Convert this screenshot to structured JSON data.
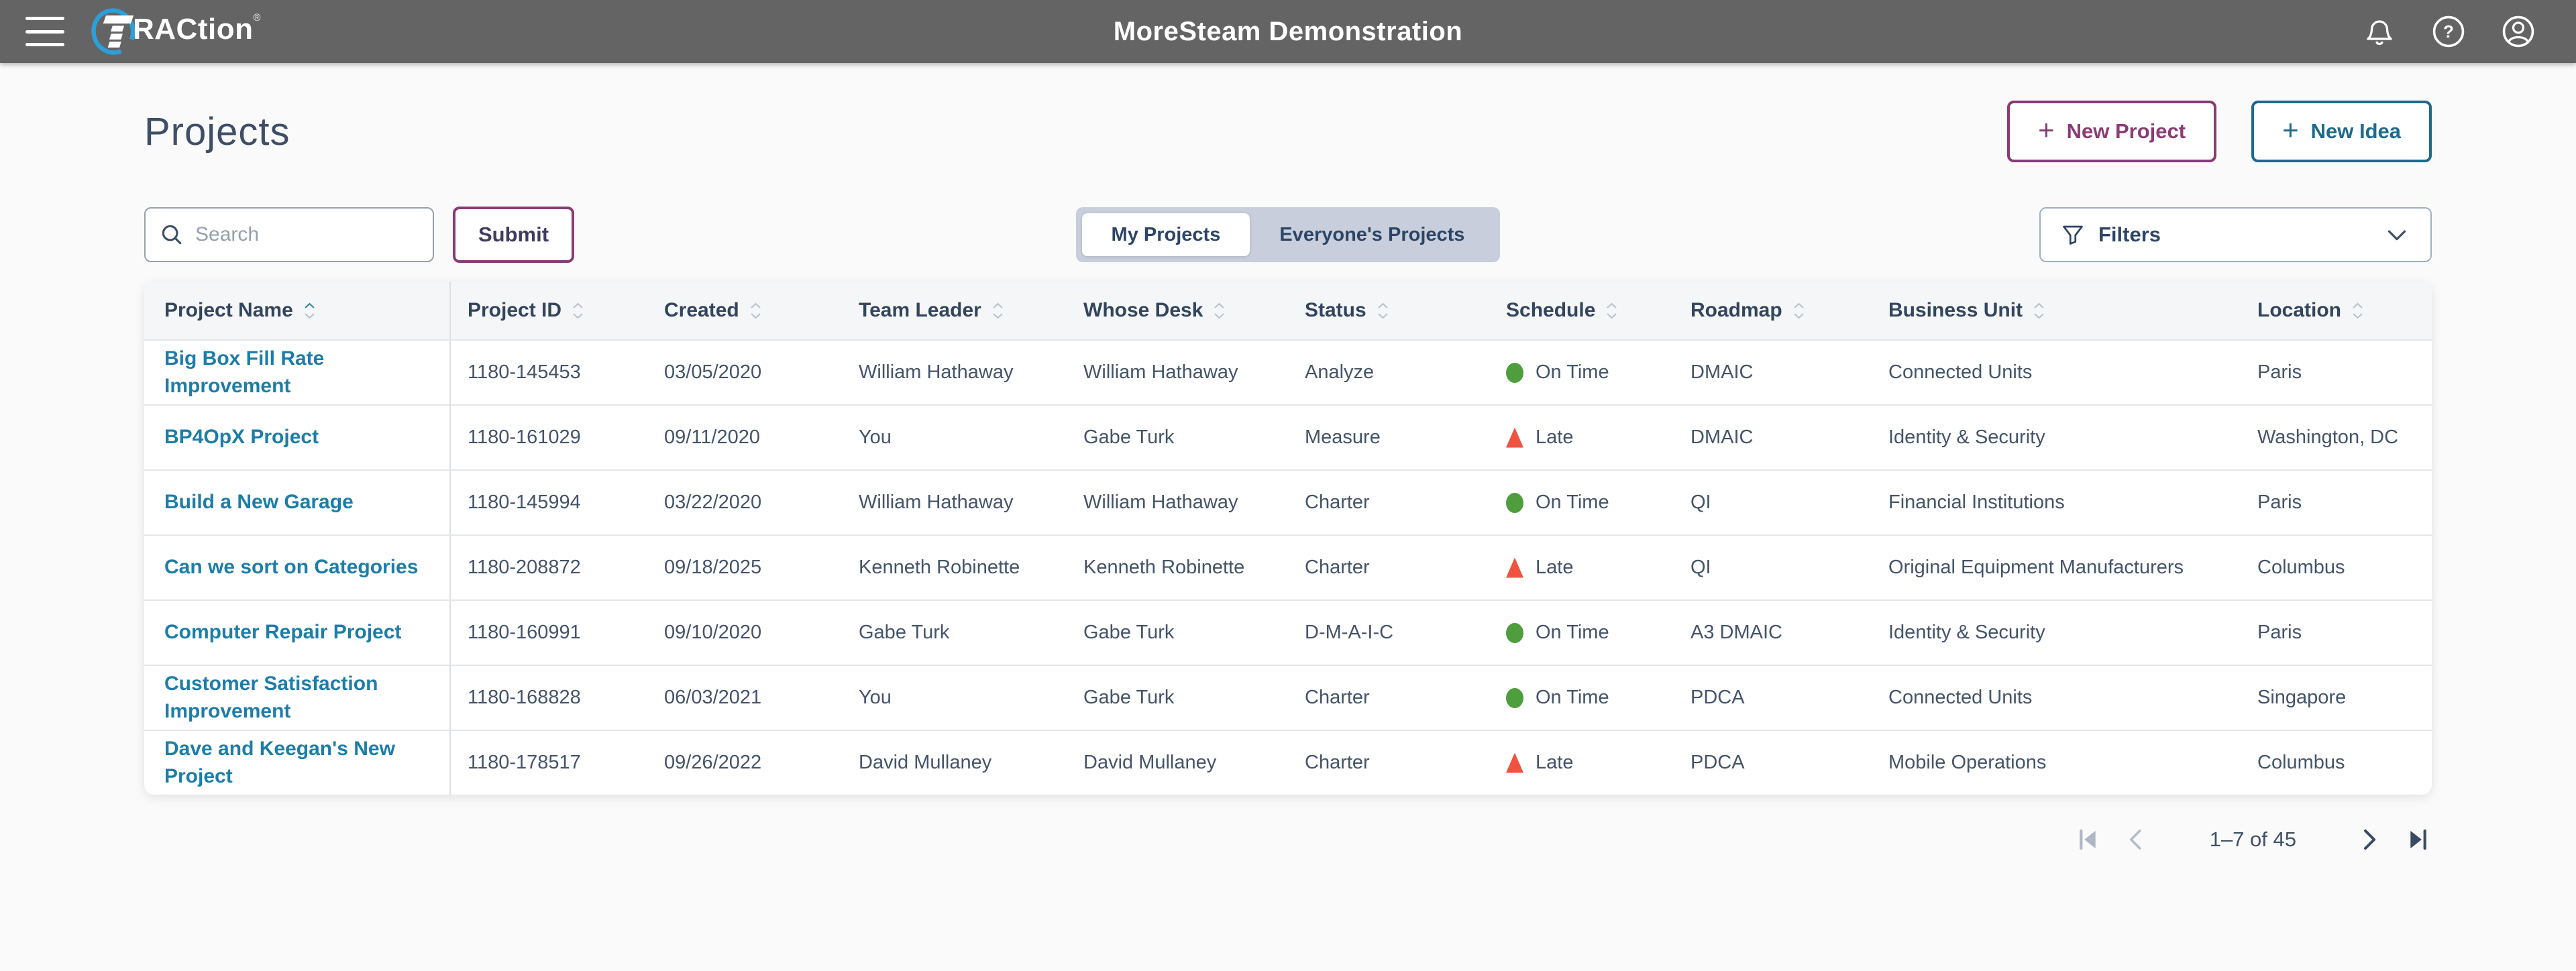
{
  "topbar": {
    "brand_text": "RACtion",
    "brand_reg": "®",
    "title": "MoreSteam Demonstration"
  },
  "page": {
    "title": "Projects",
    "plus_glyph": "+",
    "new_project_label": "New Project",
    "new_idea_label": "New Idea",
    "search_placeholder": "Search",
    "submit_label": "Submit",
    "filters_label": "Filters",
    "tabs": [
      {
        "label": "My Projects",
        "active": true
      },
      {
        "label": "Everyone's Projects",
        "active": false
      }
    ]
  },
  "sort": {
    "column": "Project Name",
    "column_index": 0,
    "direction": "ascending"
  },
  "table": {
    "columns": [
      "Project Name",
      "Project ID",
      "Created",
      "Team Leader",
      "Whose Desk",
      "Status",
      "Schedule",
      "Roadmap",
      "Business Unit",
      "Location"
    ],
    "rows": [
      {
        "name": "Big Box Fill Rate Improvement",
        "id": "1180-145453",
        "created": "03/05/2020",
        "leader": "William Hathaway",
        "desk": "William Hathaway",
        "status": "Analyze",
        "schedule": "On Time",
        "schedule_state": "on-time",
        "roadmap": "DMAIC",
        "unit": "Connected Units",
        "location": "Paris"
      },
      {
        "name": "BP4OpX Project",
        "id": "1180-161029",
        "created": "09/11/2020",
        "leader": "You",
        "desk": "Gabe Turk",
        "status": "Measure",
        "schedule": "Late",
        "schedule_state": "late",
        "roadmap": "DMAIC",
        "unit": "Identity & Security",
        "location": "Washington, DC"
      },
      {
        "name": "Build a New Garage",
        "id": "1180-145994",
        "created": "03/22/2020",
        "leader": "William Hathaway",
        "desk": "William Hathaway",
        "status": "Charter",
        "schedule": "On Time",
        "schedule_state": "on-time",
        "roadmap": "QI",
        "unit": "Financial Institutions",
        "location": "Paris"
      },
      {
        "name": "Can we sort on Categories",
        "id": "1180-208872",
        "created": "09/18/2025",
        "leader": "Kenneth Robinette",
        "desk": "Kenneth Robinette",
        "status": "Charter",
        "schedule": "Late",
        "schedule_state": "late",
        "roadmap": "QI",
        "unit": "Original Equipment Manufacturers",
        "location": "Columbus"
      },
      {
        "name": "Computer Repair Project",
        "id": "1180-160991",
        "created": "09/10/2020",
        "leader": "Gabe Turk",
        "desk": "Gabe Turk",
        "status": "D-M-A-I-C",
        "schedule": "On Time",
        "schedule_state": "on-time",
        "roadmap": "A3 DMAIC",
        "unit": "Identity & Security",
        "location": "Paris"
      },
      {
        "name": "Customer Satisfaction Improvement",
        "id": "1180-168828",
        "created": "06/03/2021",
        "leader": "You",
        "desk": "Gabe Turk",
        "status": "Charter",
        "schedule": "On Time",
        "schedule_state": "on-time",
        "roadmap": "PDCA",
        "unit": "Connected Units",
        "location": "Singapore"
      },
      {
        "name": "Dave and Keegan's New Project",
        "id": "1180-178517",
        "created": "09/26/2022",
        "leader": "David Mullaney",
        "desk": "David Mullaney",
        "status": "Charter",
        "schedule": "Late",
        "schedule_state": "late",
        "roadmap": "PDCA",
        "unit": "Mobile Operations",
        "location": "Columbus"
      }
    ]
  },
  "pagination": {
    "range_label": "1–7 of 45"
  },
  "colors": {
    "topbar_gray": "#646464",
    "accent_purple": "#8a3b76",
    "accent_teal": "#1d6a8c",
    "link_teal": "#1c7da8",
    "on_time_green": "#4f9e3d",
    "late_red": "#f0533f",
    "logo_blue": "#2d9fd8"
  }
}
